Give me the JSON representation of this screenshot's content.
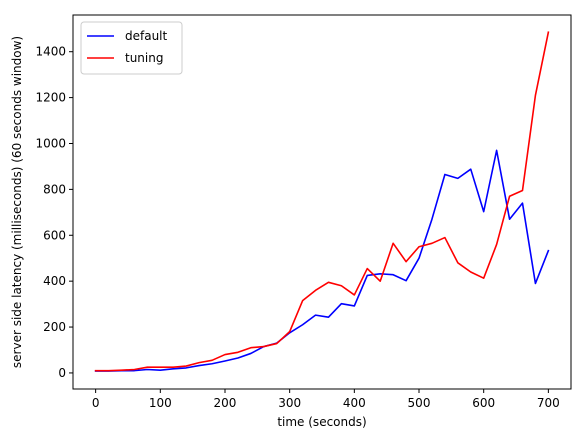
{
  "chart_data": {
    "type": "line",
    "title": "",
    "xlabel": "time (seconds)",
    "ylabel": "server side latency (milliseconds) (60 seconds window)",
    "xlim": [
      -35,
      735
    ],
    "ylim": [
      -70,
      1560
    ],
    "x_ticks": [
      0,
      100,
      200,
      300,
      400,
      500,
      600,
      700
    ],
    "y_ticks": [
      0,
      200,
      400,
      600,
      800,
      1000,
      1200,
      1400
    ],
    "grid": false,
    "legend": "top-left",
    "series": [
      {
        "name": "default",
        "color": "#0000ff",
        "x": [
          0,
          20,
          40,
          60,
          80,
          100,
          120,
          140,
          160,
          180,
          200,
          220,
          240,
          260,
          280,
          300,
          320,
          340,
          360,
          380,
          400,
          420,
          440,
          460,
          480,
          500,
          520,
          540,
          560,
          580,
          600,
          620,
          640,
          660,
          680,
          700
        ],
        "y": [
          8,
          8,
          10,
          10,
          15,
          12,
          18,
          22,
          32,
          40,
          52,
          65,
          85,
          115,
          130,
          175,
          210,
          252,
          243,
          302,
          292,
          425,
          432,
          428,
          402,
          500,
          670,
          865,
          848,
          888,
          703,
          970,
          670,
          740,
          390,
          533
        ]
      },
      {
        "name": "tuning",
        "color": "#ff0000",
        "x": [
          0,
          20,
          40,
          60,
          80,
          100,
          120,
          140,
          160,
          180,
          200,
          220,
          240,
          260,
          280,
          300,
          320,
          340,
          360,
          380,
          400,
          420,
          440,
          460,
          480,
          500,
          520,
          540,
          560,
          580,
          600,
          620,
          640,
          660,
          680,
          700
        ],
        "y": [
          10,
          10,
          12,
          15,
          25,
          25,
          25,
          30,
          45,
          55,
          80,
          90,
          110,
          115,
          128,
          180,
          315,
          360,
          395,
          380,
          340,
          455,
          400,
          565,
          485,
          550,
          565,
          590,
          480,
          440,
          413,
          560,
          770,
          795,
          1210,
          1485
        ]
      }
    ]
  }
}
